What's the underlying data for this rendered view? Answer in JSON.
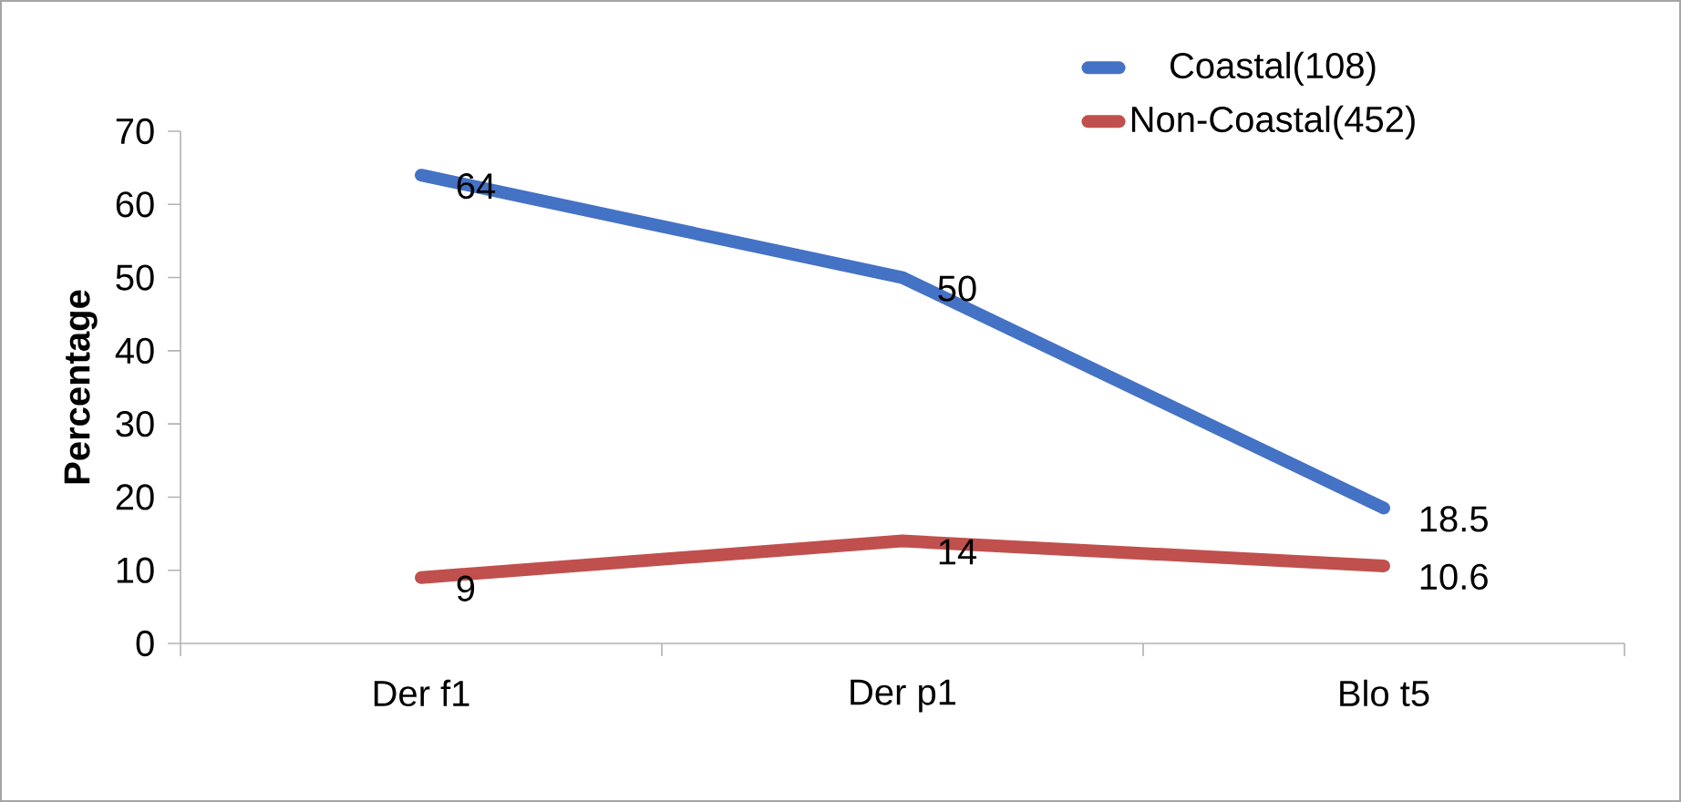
{
  "chart_data": {
    "type": "line",
    "ylabel": "Percentage",
    "categories": [
      "Der f1",
      "Der p1",
      "Blo t5"
    ],
    "series": [
      {
        "name": "Coastal(108)",
        "color": "#4472c4",
        "values": [
          64,
          50,
          18.5
        ]
      },
      {
        "name": "Non-Coastal(452)",
        "color": "#c0504d",
        "values": [
          9,
          14,
          10.6
        ]
      }
    ],
    "ylim": [
      0,
      70
    ],
    "yticks": [
      0,
      10,
      20,
      30,
      40,
      50,
      60,
      70
    ],
    "grid": false,
    "legend": "top right",
    "data_labels": true,
    "marker": "none",
    "line_style": "solid"
  }
}
